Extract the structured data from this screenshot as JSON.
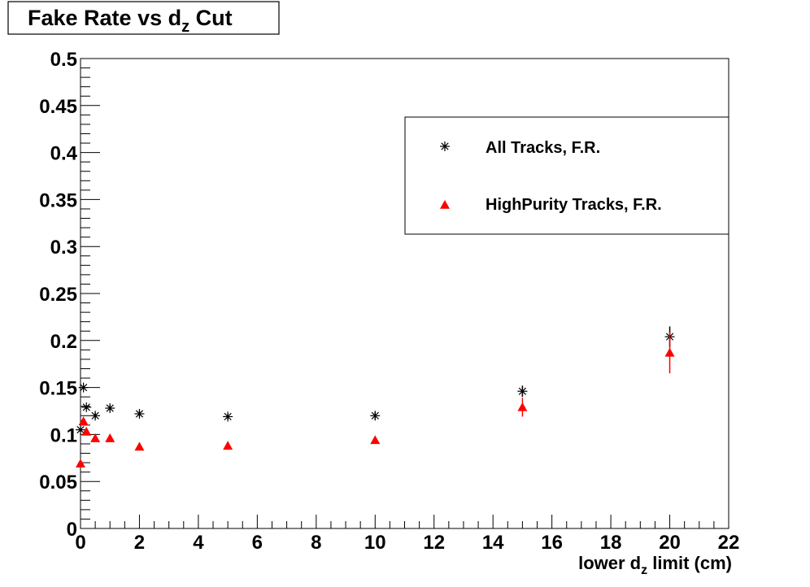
{
  "chart_data": {
    "type": "scatter",
    "title": "Fake Rate vs d",
    "title_sub": "z",
    "title_suffix": " Cut",
    "xlabel_prefix": "lower d",
    "xlabel_sub": "z",
    "xlabel_suffix": " limit (cm)",
    "ylabel": "",
    "xlim": [
      0,
      22
    ],
    "ylim": [
      0,
      0.5
    ],
    "x_ticks": [
      0,
      2,
      4,
      6,
      8,
      10,
      12,
      14,
      16,
      18,
      20,
      22
    ],
    "x_tick_labels": [
      "0",
      "2",
      "4",
      "6",
      "8",
      "10",
      "12",
      "14",
      "16",
      "18",
      "20",
      "22"
    ],
    "y_ticks": [
      0,
      0.05,
      0.1,
      0.15,
      0.2,
      0.25,
      0.3,
      0.35,
      0.4,
      0.45,
      0.5
    ],
    "y_tick_labels": [
      "0",
      "0.05",
      "0.1",
      "0.15",
      "0.2",
      "0.25",
      "0.3",
      "0.35",
      "0.4",
      "0.45",
      "0.5"
    ],
    "grid": false,
    "legend_position": "top-right",
    "series": [
      {
        "name": "All Tracks, F.R.",
        "marker": "star",
        "color": "#000000",
        "x": [
          0.0,
          0.1,
          0.2,
          0.5,
          1.0,
          2.0,
          5.0,
          10.0,
          15.0,
          20.0
        ],
        "y": [
          0.105,
          0.15,
          0.129,
          0.12,
          0.128,
          0.122,
          0.119,
          0.12,
          0.146,
          0.204
        ],
        "yerr": [
          0.002,
          0.002,
          0.002,
          0.003,
          0.003,
          0.003,
          0.003,
          0.004,
          0.006,
          0.011
        ]
      },
      {
        "name": "HighPurity Tracks, F.R.",
        "marker": "triangle",
        "color": "#ff0000",
        "x": [
          0.0,
          0.1,
          0.2,
          0.5,
          1.0,
          2.0,
          5.0,
          10.0,
          15.0,
          20.0
        ],
        "y": [
          0.069,
          0.114,
          0.103,
          0.096,
          0.096,
          0.087,
          0.088,
          0.094,
          0.129,
          0.187
        ],
        "yerr": [
          0.002,
          0.002,
          0.002,
          0.002,
          0.002,
          0.002,
          0.003,
          0.004,
          0.01,
          0.022
        ]
      }
    ]
  }
}
